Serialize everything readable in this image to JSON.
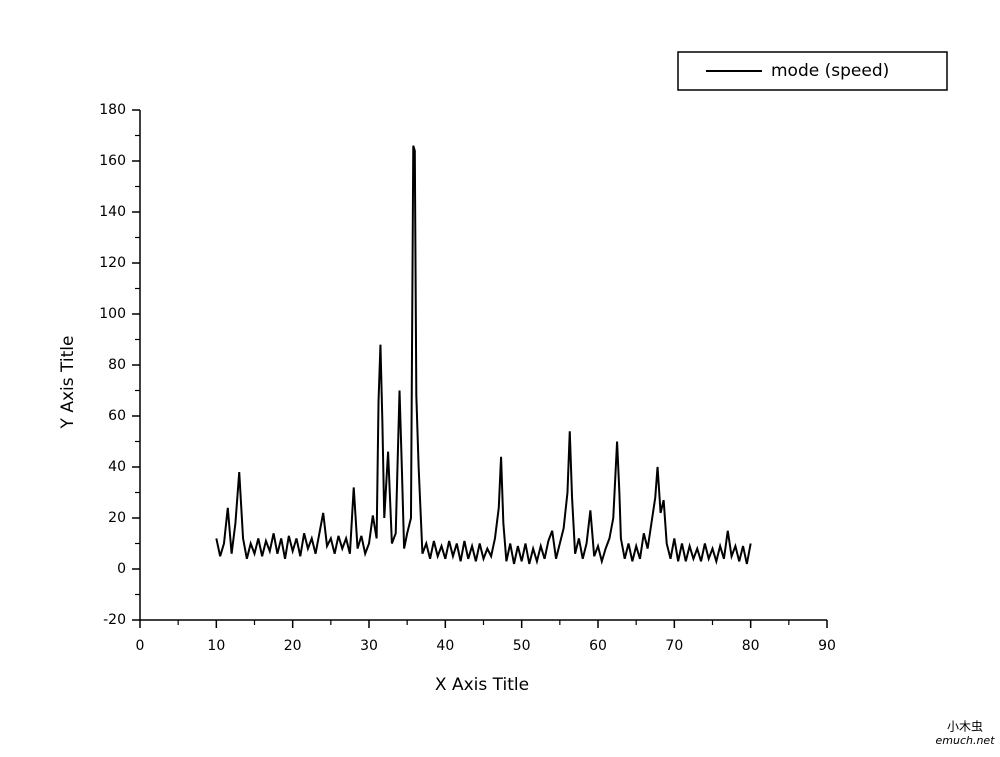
{
  "chart_data": {
    "type": "line",
    "x_label": "X Axis Title",
    "y_label": "Y Axis Title",
    "xlim": [
      0,
      90
    ],
    "xticks": [
      0,
      10,
      20,
      30,
      40,
      50,
      60,
      70,
      80,
      90
    ],
    "ylim": [
      -20,
      180
    ],
    "yticks": [
      -20,
      0,
      20,
      40,
      60,
      80,
      100,
      120,
      140,
      160,
      180
    ],
    "legend": "top-right",
    "x": [
      10,
      10.5,
      11,
      11.5,
      12,
      12.5,
      13,
      13.5,
      14,
      14.5,
      15,
      15.5,
      16,
      16.5,
      17,
      17.5,
      18,
      18.5,
      19,
      19.5,
      20,
      20.5,
      21,
      21.5,
      22,
      22.5,
      23,
      23.5,
      24,
      24.5,
      25,
      25.5,
      26,
      26.5,
      27,
      27.5,
      28,
      28.5,
      29,
      29.5,
      30,
      30.5,
      31,
      31.25,
      31.5,
      31.75,
      32,
      32.5,
      33,
      33.5,
      34,
      34.3,
      34.6,
      35,
      35.5,
      35.8,
      36,
      36.2,
      36.5,
      37,
      37.5,
      38,
      38.5,
      39,
      39.5,
      40,
      40.5,
      41,
      41.5,
      42,
      42.5,
      43,
      43.5,
      44,
      44.5,
      45,
      45.5,
      46,
      46.5,
      47,
      47.3,
      47.6,
      48,
      48.5,
      49,
      49.5,
      50,
      50.5,
      51,
      51.5,
      52,
      52.5,
      53,
      53.5,
      54,
      54.5,
      55,
      55.5,
      56,
      56.3,
      56.6,
      57,
      57.5,
      58,
      58.5,
      59,
      59.5,
      60,
      60.5,
      61,
      61.5,
      62,
      62.5,
      62.8,
      63,
      63.5,
      64,
      64.5,
      65,
      65.5,
      66,
      66.5,
      67,
      67.5,
      67.8,
      68.2,
      68.6,
      69,
      69.5,
      70,
      70.5,
      71,
      71.5,
      72,
      72.5,
      73,
      73.5,
      74,
      74.5,
      75,
      75.5,
      76,
      76.5,
      77,
      77.5,
      78,
      78.5,
      79,
      79.5,
      80
    ],
    "series": [
      {
        "name": "mode (speed)",
        "color": "#000000",
        "values": [
          12,
          5,
          10,
          24,
          6,
          18,
          38,
          12,
          4,
          10,
          6,
          12,
          5,
          11,
          7,
          14,
          6,
          12,
          4,
          13,
          7,
          12,
          5,
          14,
          8,
          12,
          6,
          14,
          22,
          9,
          12,
          6,
          13,
          8,
          12,
          6,
          32,
          8,
          13,
          6,
          10,
          21,
          12,
          66,
          88,
          58,
          20,
          46,
          10,
          14,
          70,
          40,
          8,
          14,
          20,
          166,
          164,
          68,
          40,
          6,
          10,
          4,
          11,
          5,
          9,
          4,
          11,
          5,
          10,
          3,
          11,
          4,
          9,
          3,
          10,
          4,
          8,
          5,
          12,
          24,
          44,
          18,
          3,
          10,
          2,
          9,
          3,
          10,
          2,
          8,
          3,
          9,
          4,
          11,
          15,
          4,
          10,
          16,
          30,
          54,
          28,
          6,
          12,
          4,
          10,
          23,
          5,
          9,
          3,
          8,
          12,
          20,
          50,
          30,
          12,
          4,
          10,
          3,
          9,
          4,
          14,
          8,
          18,
          28,
          40,
          22,
          27,
          10,
          4,
          12,
          3,
          10,
          3,
          9,
          4,
          8,
          3,
          10,
          4,
          8,
          3,
          9,
          4,
          15,
          5,
          9,
          3,
          9,
          2,
          10
        ]
      }
    ]
  },
  "watermark": {
    "cn": "小木虫",
    "site": "emuch.net"
  }
}
